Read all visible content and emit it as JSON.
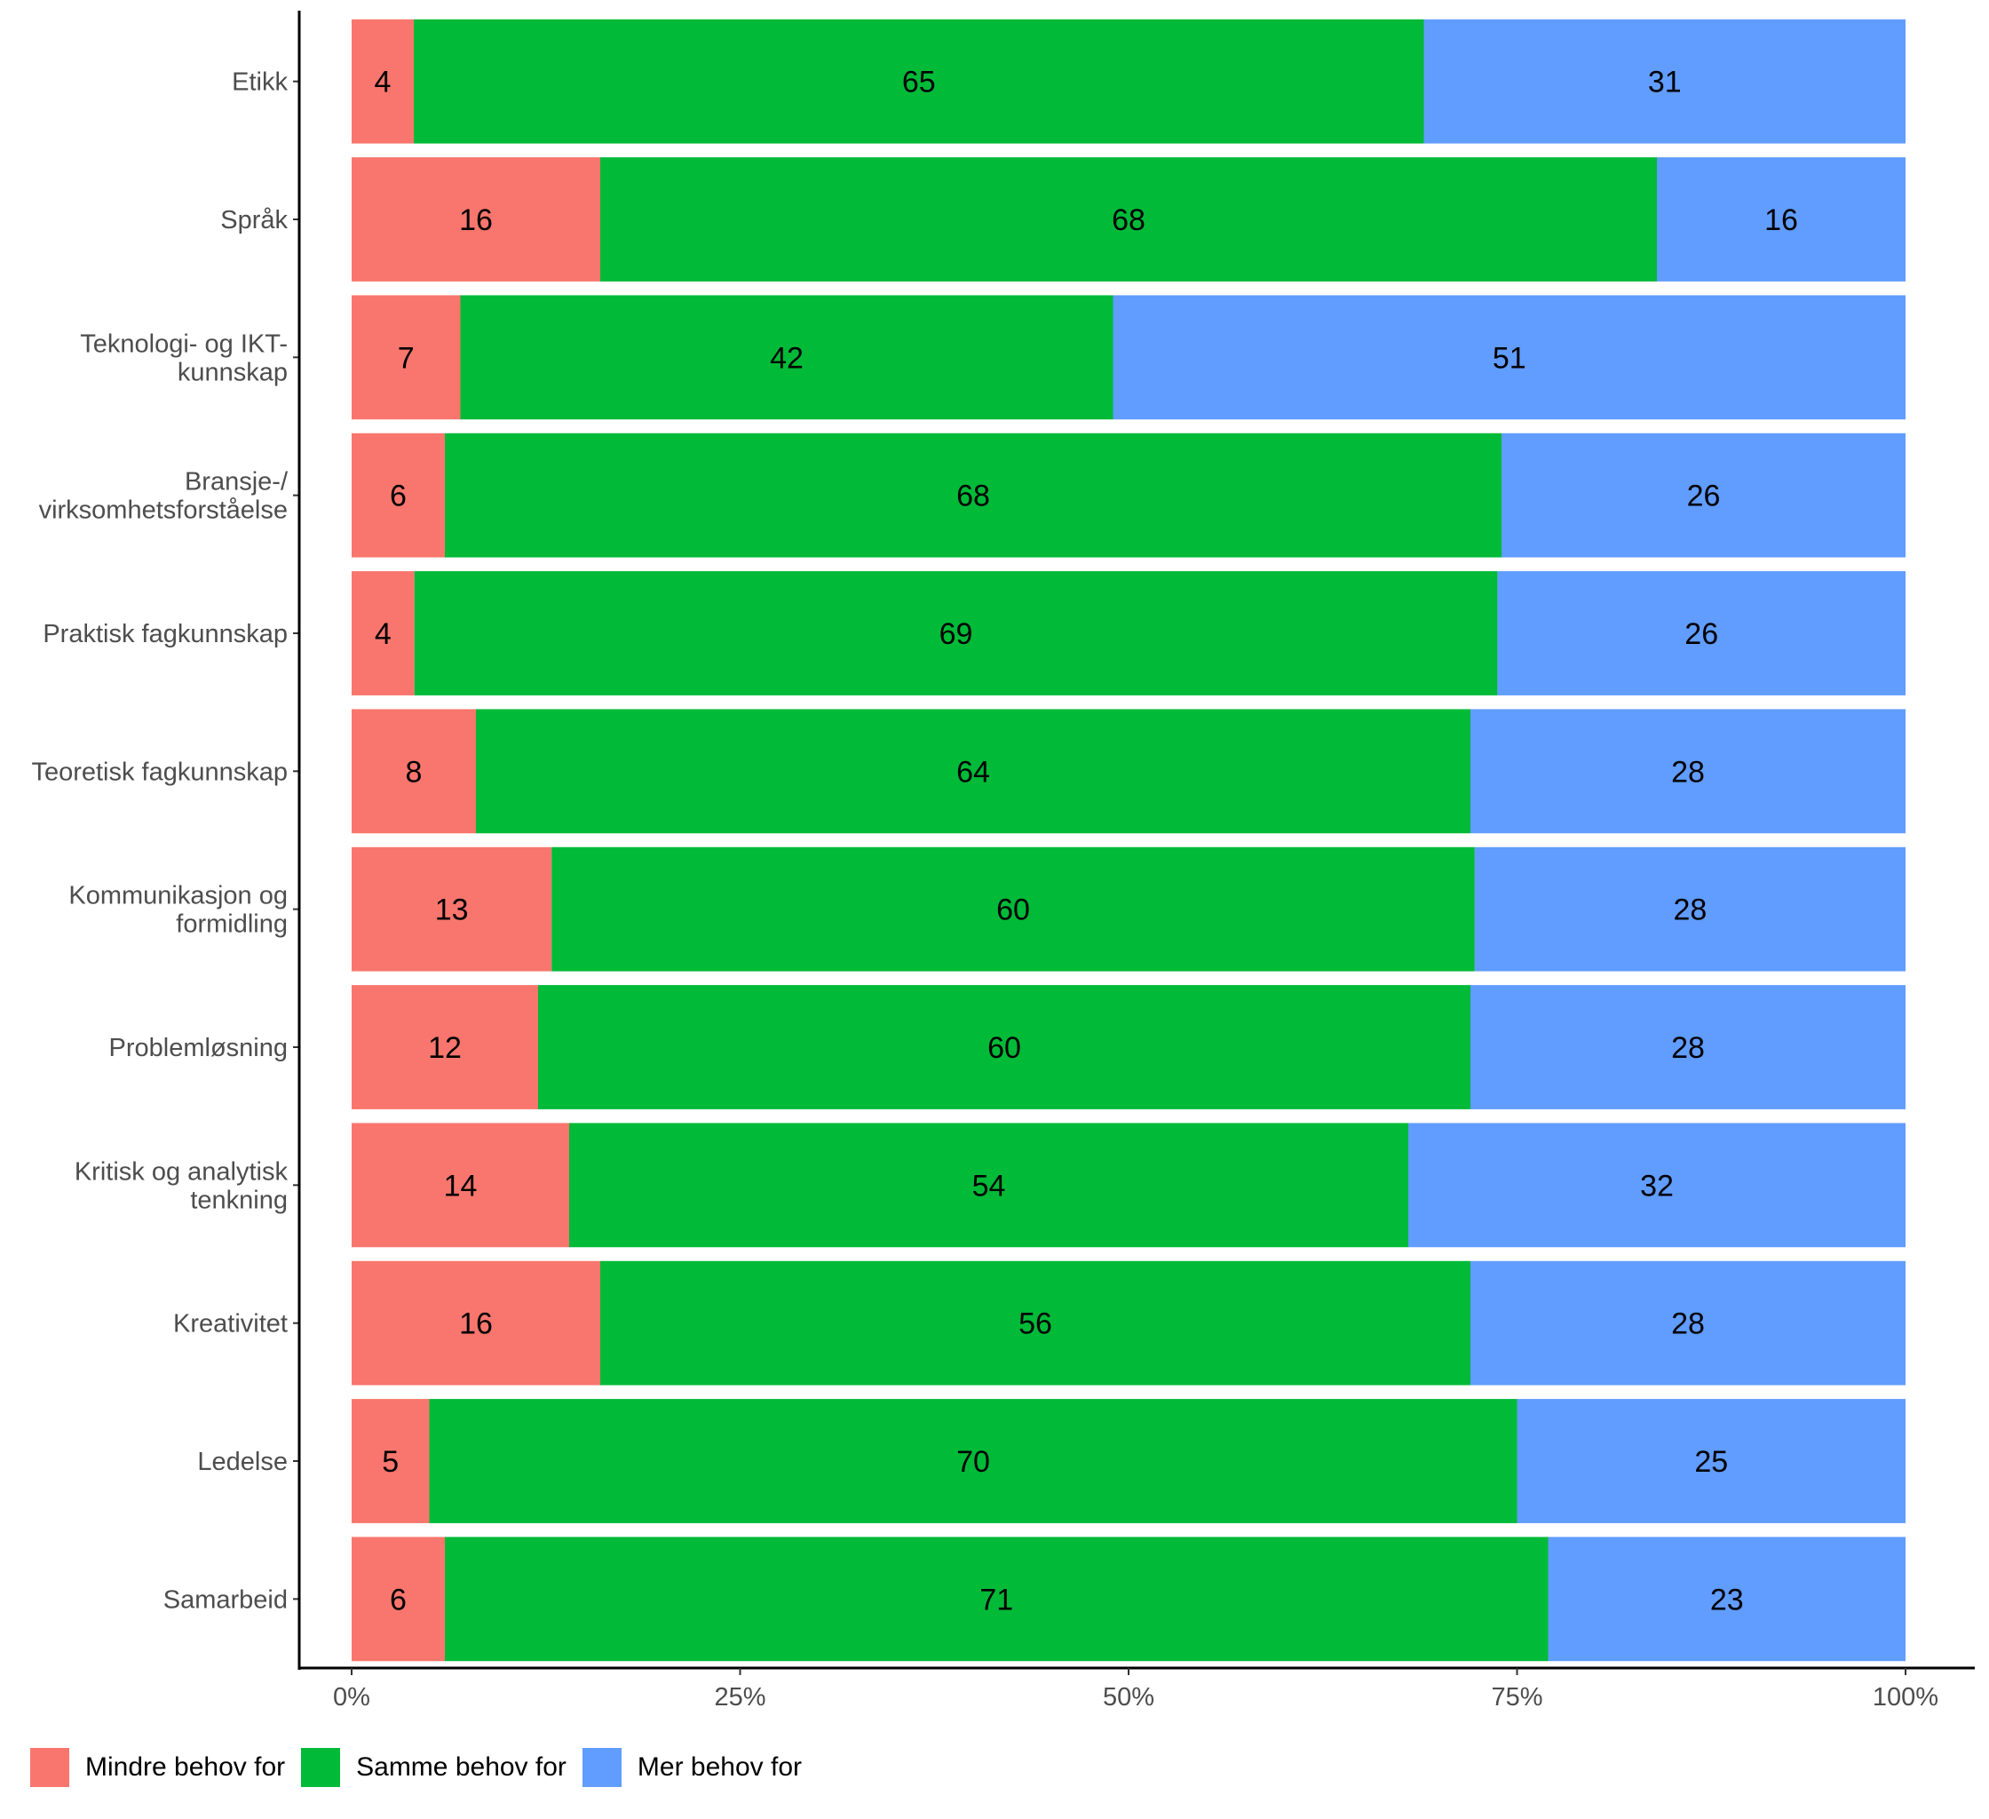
{
  "chart_data": {
    "type": "bar",
    "orientation": "horizontal",
    "stacked": true,
    "percent": true,
    "title": "",
    "xlabel": "",
    "ylabel": "",
    "xlim": [
      0,
      100
    ],
    "x_ticks": [
      "0%",
      "25%",
      "50%",
      "75%",
      "100%"
    ],
    "grid": false,
    "legend_position": "bottom-left",
    "categories": [
      "Etikk",
      "Språk",
      "Teknologi- og IKT-\nkunnskap",
      "Bransje-/\nvirksomhetsforståelse",
      "Praktisk fagkunnskap",
      "Teoretisk fagkunnskap",
      "Kommunikasjon og\nformidling",
      "Problemløsning",
      "Kritisk og analytisk\ntenkning",
      "Kreativitet",
      "Ledelse",
      "Samarbeid"
    ],
    "series": [
      {
        "name": "Mindre behov for",
        "color": "#F8766D",
        "values": [
          4,
          16,
          7,
          6,
          4,
          8,
          13,
          12,
          14,
          16,
          5,
          6
        ]
      },
      {
        "name": "Samme behov for",
        "color": "#00BA38",
        "values": [
          65,
          68,
          42,
          68,
          69,
          64,
          60,
          60,
          54,
          56,
          70,
          71
        ]
      },
      {
        "name": "Mer behov for",
        "color": "#619CFF",
        "values": [
          31,
          16,
          51,
          26,
          26,
          28,
          28,
          28,
          32,
          28,
          25,
          23
        ]
      }
    ]
  }
}
